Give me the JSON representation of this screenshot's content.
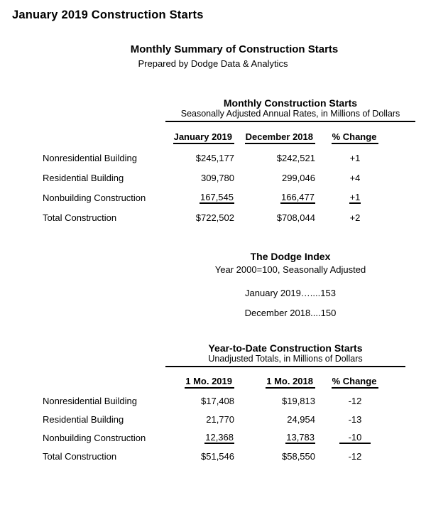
{
  "page": {
    "title": "January 2019 Construction Starts"
  },
  "header": {
    "title": "Monthly Summary of Construction Starts",
    "subtitle": "Prepared by Dodge Data & Analytics"
  },
  "monthly_table": {
    "title": "Monthly Construction Starts",
    "subtitle": "Seasonally Adjusted Annual Rates, in Millions of Dollars",
    "columns": [
      "January 2019",
      "December 2018",
      "% Change"
    ],
    "rows": [
      {
        "label": "Nonresidential Building",
        "col1": "$245,177",
        "col2": "$242,521",
        "change": "+1"
      },
      {
        "label": "Residential Building",
        "col1": "309,780",
        "col2": "299,046",
        "change": "+4"
      },
      {
        "label": "Nonbuilding Construction",
        "col1": "167,545",
        "col2": "166,477",
        "change": "+1"
      },
      {
        "label": "Total Construction",
        "col1": "$722,502",
        "col2": "$708,044",
        "change": "+2"
      }
    ]
  },
  "dodge_index": {
    "title": "The Dodge Index",
    "subtitle": "Year 2000=100, Seasonally Adjusted",
    "line_january": "January 2019…....153",
    "line_december": "December 2018....150"
  },
  "ytd_table": {
    "title": "Year-to-Date Construction Starts",
    "subtitle": "Unadjusted Totals, in Millions of Dollars",
    "columns": [
      "1 Mo. 2019",
      "1 Mo. 2018",
      "% Change"
    ],
    "rows": [
      {
        "label": "Nonresidential Building",
        "col1": "$17,408",
        "col2": "$19,813",
        "change": "-12"
      },
      {
        "label": "Residential Building",
        "col1": "21,770",
        "col2": "24,954",
        "change": "-13"
      },
      {
        "label": "Nonbuilding Construction",
        "col1": "12,368",
        "col2": "13,783",
        "change": "-10"
      },
      {
        "label": "Total Construction",
        "col1": "$51,546",
        "col2": "$58,550",
        "change": "-12"
      }
    ]
  }
}
